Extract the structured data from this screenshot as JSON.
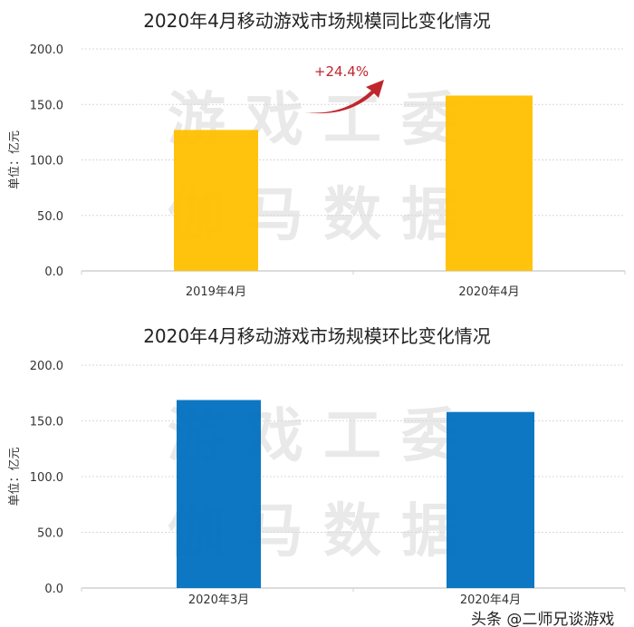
{
  "chart_data": [
    {
      "type": "bar",
      "title": "2020年4月移动游戏市场规模同比变化情况",
      "ylabel": "单位：亿元",
      "categories": [
        "2019年4月",
        "2020年4月"
      ],
      "values": [
        127.0,
        158.0
      ],
      "ylim": [
        0,
        200
      ],
      "yticks": [
        "0.0",
        "50.0",
        "100.0",
        "150.0",
        "200.0"
      ],
      "grid": true,
      "color": "#FFC000",
      "annotation": "+24.4%",
      "annotation_color": "#C0262D"
    },
    {
      "type": "bar",
      "title": "2020年4月移动游戏市场规模环比变化情况",
      "ylabel": "单位：亿元",
      "categories": [
        "2020年3月",
        "2020年4月"
      ],
      "values": [
        168.7,
        158.0
      ],
      "ylim": [
        0,
        200
      ],
      "yticks": [
        "0.0",
        "50.0",
        "100.0",
        "150.0",
        "200.0"
      ],
      "grid": true,
      "color": "#0070C0"
    }
  ],
  "watermark": {
    "line1": "游戏工委",
    "line2": "伽马数据"
  },
  "footer_watermark": "头条 @二师兄谈游戏"
}
